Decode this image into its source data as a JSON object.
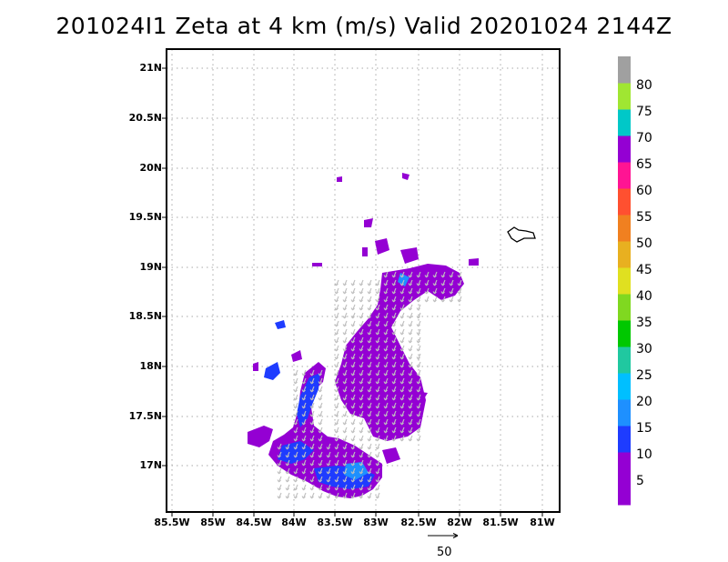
{
  "title": "201024I1 Zeta at 4 km (m/s) Valid 20201024 2144Z",
  "lat_ticks": [
    "21N",
    "20.5N",
    "20N",
    "19.5N",
    "19N",
    "18.5N",
    "18N",
    "17.5N",
    "17N"
  ],
  "lon_ticks": [
    "85.5W",
    "85W",
    "84.5W",
    "84W",
    "83.5W",
    "83W",
    "82.5W",
    "82W",
    "81.5W",
    "81W"
  ],
  "colorbar": {
    "labels": [
      "5",
      "10",
      "15",
      "20",
      "25",
      "30",
      "35",
      "40",
      "45",
      "50",
      "55",
      "60",
      "65",
      "70",
      "75",
      "80"
    ],
    "colors": [
      "#9400d3",
      "#1e3cff",
      "#1e90ff",
      "#00bfff",
      "#20c8a0",
      "#00c800",
      "#80d820",
      "#e0e020",
      "#e8b020",
      "#f08020",
      "#ff5030",
      "#ff1493",
      "#9400d3",
      "#00c8c8",
      "#a0e632",
      "#a0a0a0"
    ]
  },
  "vector_scale_label": "50",
  "colors": {
    "primary_echo": "#9400d3",
    "secondary_echo": "#1e3cff",
    "vector_arrow": "#bfbfbf",
    "grid": "#a8a8a8"
  }
}
